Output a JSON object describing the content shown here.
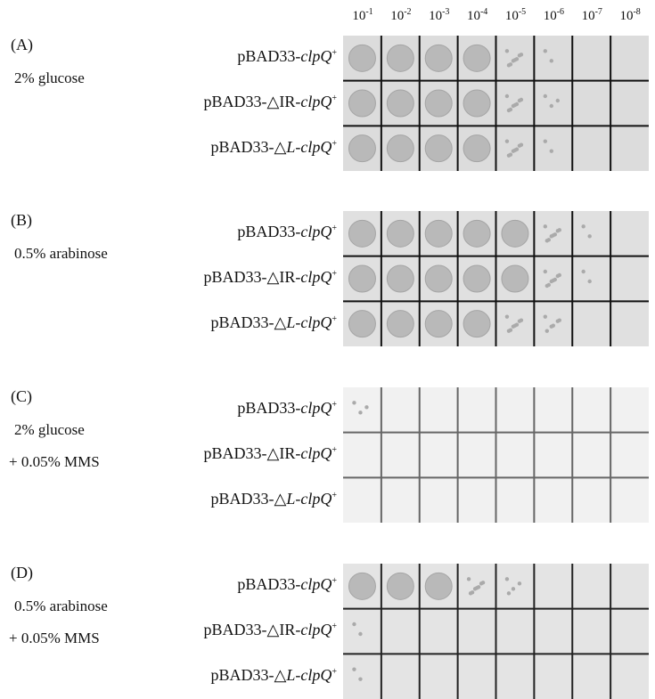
{
  "columns": [
    {
      "base": "10",
      "exp": "-1"
    },
    {
      "base": "10",
      "exp": "-2"
    },
    {
      "base": "10",
      "exp": "-3"
    },
    {
      "base": "10",
      "exp": "-4"
    },
    {
      "base": "10",
      "exp": "-5"
    },
    {
      "base": "10",
      "exp": "-6"
    },
    {
      "base": "10",
      "exp": "-7"
    },
    {
      "base": "10",
      "exp": "-8"
    }
  ],
  "panels": [
    {
      "label": "(A)",
      "conditions": [
        "2% glucose"
      ],
      "rows": [
        [
          {
            "text": "pBAD33-"
          },
          {
            "text": "clpQ",
            "italic": true
          },
          {
            "text": "+",
            "sup": true
          }
        ],
        [
          {
            "text": "pBAD33-△IR-"
          },
          {
            "text": "clpQ",
            "italic": true
          },
          {
            "text": "+",
            "sup": true
          }
        ],
        [
          {
            "text": "pBAD33-△"
          },
          {
            "text": "L",
            "italic": true
          },
          {
            "text": "-"
          },
          {
            "text": "clpQ",
            "italic": true
          },
          {
            "text": "+",
            "sup": true
          }
        ]
      ]
    },
    {
      "label": "(B)",
      "conditions": [
        "0.5% arabinose"
      ],
      "rows": [
        [
          {
            "text": "pBAD33-"
          },
          {
            "text": "clpQ",
            "italic": true
          },
          {
            "text": "+",
            "sup": true
          }
        ],
        [
          {
            "text": "pBAD33-△IR-"
          },
          {
            "text": "clpQ",
            "italic": true
          },
          {
            "text": "+",
            "sup": true
          }
        ],
        [
          {
            "text": "pBAD33-△"
          },
          {
            "text": "L",
            "italic": true
          },
          {
            "text": "-"
          },
          {
            "text": "clpQ",
            "italic": true
          },
          {
            "text": "+",
            "sup": true
          }
        ]
      ]
    },
    {
      "label": "(C)",
      "conditions": [
        "2% glucose",
        "+ 0.05% MMS"
      ],
      "rows": [
        [
          {
            "text": "pBAD33-"
          },
          {
            "text": "clpQ",
            "italic": true
          },
          {
            "text": "+",
            "sup": true
          }
        ],
        [
          {
            "text": "pBAD33-△IR-"
          },
          {
            "text": "clpQ",
            "italic": true
          },
          {
            "text": "+",
            "sup": true
          }
        ],
        [
          {
            "text": "pBAD33-△"
          },
          {
            "text": "L",
            "italic": true
          },
          {
            "text": "-"
          },
          {
            "text": "clpQ",
            "italic": true
          },
          {
            "text": "+",
            "sup": true
          }
        ]
      ]
    },
    {
      "label": "(D)",
      "conditions": [
        "0.5% arabinose",
        "+ 0.05% MMS"
      ],
      "rows": [
        [
          {
            "text": "pBAD33-"
          },
          {
            "text": "clpQ",
            "italic": true
          },
          {
            "text": "+",
            "sup": true
          }
        ],
        [
          {
            "text": "pBAD33-△IR-"
          },
          {
            "text": "clpQ",
            "italic": true
          },
          {
            "text": "+",
            "sup": true
          }
        ],
        [
          {
            "text": "pBAD33-△"
          },
          {
            "text": "L",
            "italic": true
          },
          {
            "text": "-"
          },
          {
            "text": "clpQ",
            "italic": true
          },
          {
            "text": "+",
            "sup": true
          }
        ]
      ]
    }
  ]
}
